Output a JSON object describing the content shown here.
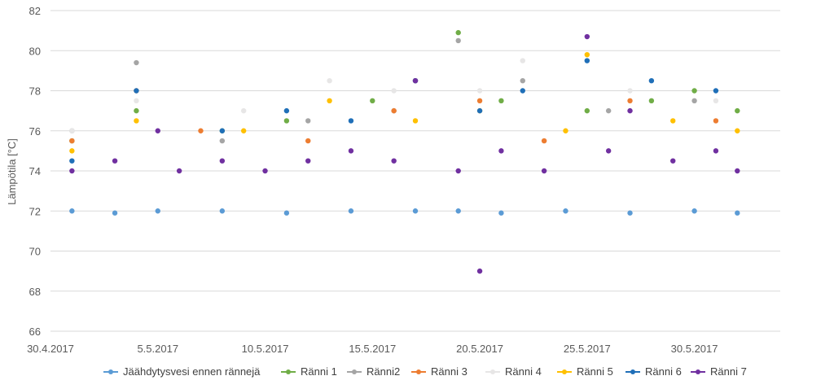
{
  "chart_data": {
    "type": "scatter",
    "title": "",
    "xlabel": "",
    "ylabel": "Lämpötila [°C]",
    "xlim": [
      "2017-04-30",
      "2017-06-03"
    ],
    "ylim": [
      66,
      82
    ],
    "x_ticks": [
      "30.4.2017",
      "5.5.2017",
      "10.5.2017",
      "15.5.2017",
      "20.5.2017",
      "25.5.2017",
      "30.5.2017"
    ],
    "y_ticks": [
      66,
      68,
      70,
      72,
      74,
      76,
      78,
      80,
      82
    ],
    "grid": "horizontal",
    "legend_position": "bottom",
    "series": [
      {
        "name": "Jäähdytysvesi ennen rännejä",
        "color": "#5B9BD5",
        "points": [
          [
            "2017-05-01",
            72.0
          ],
          [
            "2017-05-03",
            71.9
          ],
          [
            "2017-05-05",
            72.0
          ],
          [
            "2017-05-08",
            72.0
          ],
          [
            "2017-05-11",
            71.9
          ],
          [
            "2017-05-14",
            72.0
          ],
          [
            "2017-05-17",
            72.0
          ],
          [
            "2017-05-19",
            72.0
          ],
          [
            "2017-05-21",
            71.9
          ],
          [
            "2017-05-24",
            72.0
          ],
          [
            "2017-05-27",
            71.9
          ],
          [
            "2017-05-30",
            72.0
          ],
          [
            "2017-06-01",
            71.9
          ]
        ]
      },
      {
        "name": "Ränni 1",
        "color": "#70AD47",
        "points": [
          [
            "2017-05-01",
            75.5
          ],
          [
            "2017-05-04",
            77.0
          ],
          [
            "2017-05-08",
            76.0
          ],
          [
            "2017-05-11",
            76.5
          ],
          [
            "2017-05-15",
            77.5
          ],
          [
            "2017-05-17",
            78.5
          ],
          [
            "2017-05-19",
            80.9
          ],
          [
            "2017-05-21",
            77.5
          ],
          [
            "2017-05-25",
            77.0
          ],
          [
            "2017-05-28",
            77.5
          ],
          [
            "2017-05-30",
            78.0
          ],
          [
            "2017-06-01",
            77.0
          ]
        ]
      },
      {
        "name": "Ränni2",
        "color": "#A5A5A5",
        "points": [
          [
            "2017-05-01",
            76.0
          ],
          [
            "2017-05-04",
            79.4
          ],
          [
            "2017-05-08",
            75.5
          ],
          [
            "2017-05-12",
            76.5
          ],
          [
            "2017-05-16",
            77.0
          ],
          [
            "2017-05-19",
            80.5
          ],
          [
            "2017-05-22",
            78.5
          ],
          [
            "2017-05-26",
            77.0
          ],
          [
            "2017-05-30",
            77.5
          ]
        ]
      },
      {
        "name": "Ränni 3",
        "color": "#ED7D31",
        "points": [
          [
            "2017-05-01",
            75.5
          ],
          [
            "2017-05-04",
            78.0
          ],
          [
            "2017-05-07",
            76.0
          ],
          [
            "2017-05-12",
            75.5
          ],
          [
            "2017-05-16",
            77.0
          ],
          [
            "2017-05-20",
            77.5
          ],
          [
            "2017-05-23",
            75.5
          ],
          [
            "2017-05-27",
            77.5
          ],
          [
            "2017-05-31",
            76.5
          ]
        ]
      },
      {
        "name": "Ränni 4",
        "color": "#E7E6E6",
        "points": [
          [
            "2017-05-01",
            76.0
          ],
          [
            "2017-05-04",
            77.5
          ],
          [
            "2017-05-09",
            77.0
          ],
          [
            "2017-05-13",
            78.5
          ],
          [
            "2017-05-16",
            78.0
          ],
          [
            "2017-05-20",
            78.0
          ],
          [
            "2017-05-22",
            79.5
          ],
          [
            "2017-05-27",
            78.0
          ],
          [
            "2017-05-31",
            77.5
          ]
        ]
      },
      {
        "name": "Ränni 5",
        "color": "#FFC000",
        "points": [
          [
            "2017-05-01",
            75.0
          ],
          [
            "2017-05-04",
            76.5
          ],
          [
            "2017-05-09",
            76.0
          ],
          [
            "2017-05-13",
            77.5
          ],
          [
            "2017-05-17",
            76.5
          ],
          [
            "2017-05-20",
            77.0
          ],
          [
            "2017-05-24",
            76.0
          ],
          [
            "2017-05-25",
            79.8
          ],
          [
            "2017-05-29",
            76.5
          ],
          [
            "2017-06-01",
            76.0
          ]
        ]
      },
      {
        "name": "Ränni 6",
        "color": "#1F6FB8",
        "points": [
          [
            "2017-05-01",
            74.5
          ],
          [
            "2017-05-04",
            78.0
          ],
          [
            "2017-05-08",
            76.0
          ],
          [
            "2017-05-11",
            77.0
          ],
          [
            "2017-05-14",
            76.5
          ],
          [
            "2017-05-17",
            78.5
          ],
          [
            "2017-05-20",
            77.0
          ],
          [
            "2017-05-22",
            78.0
          ],
          [
            "2017-05-25",
            79.5
          ],
          [
            "2017-05-28",
            78.5
          ],
          [
            "2017-05-31",
            78.0
          ]
        ]
      },
      {
        "name": "Ränni 7",
        "color": "#7030A0",
        "points": [
          [
            "2017-05-01",
            74.0
          ],
          [
            "2017-05-03",
            74.5
          ],
          [
            "2017-05-05",
            76.0
          ],
          [
            "2017-05-06",
            74.0
          ],
          [
            "2017-05-08",
            74.5
          ],
          [
            "2017-05-10",
            74.0
          ],
          [
            "2017-05-12",
            74.5
          ],
          [
            "2017-05-14",
            75.0
          ],
          [
            "2017-05-16",
            74.5
          ],
          [
            "2017-05-17",
            78.5
          ],
          [
            "2017-05-19",
            74.0
          ],
          [
            "2017-05-20",
            69.0
          ],
          [
            "2017-05-21",
            75.0
          ],
          [
            "2017-05-23",
            74.0
          ],
          [
            "2017-05-25",
            80.7
          ],
          [
            "2017-05-26",
            75.0
          ],
          [
            "2017-05-27",
            77.0
          ],
          [
            "2017-05-29",
            74.5
          ],
          [
            "2017-05-31",
            75.0
          ],
          [
            "2017-06-01",
            74.0
          ]
        ]
      }
    ]
  }
}
